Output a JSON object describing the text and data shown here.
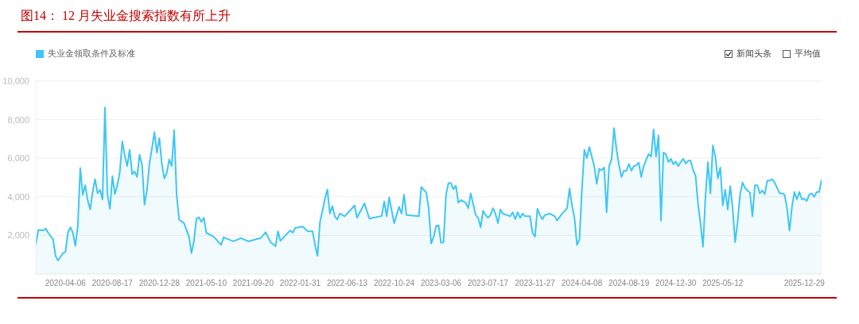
{
  "chart_data": {
    "type": "area",
    "title": "图14：  12 月失业金搜索指数有所上升",
    "legend": "top left",
    "grid": "y",
    "marker": "none",
    "line_style": "solid",
    "annotations": [
      "新闻头条",
      "平均值"
    ],
    "xlim": [
      "2020-01-13",
      "2026-02-16"
    ],
    "xticks": [
      "2020-04-06",
      "2020-08-17",
      "2020-12-28",
      "2021-05-10",
      "2021-09-20",
      "2022-01-31",
      "2022-06-13",
      "2022-10-24",
      "2023-03-06",
      "2023-07-17",
      "2023-11-27",
      "2024-04-08",
      "2024-08-19",
      "2024-12-30",
      "2025-05-12",
      "2025-12-29"
    ],
    "ylim": [
      0,
      10000
    ],
    "yticks": [
      {
        "value": 2000,
        "label": "2,000"
      },
      {
        "value": 4000,
        "label": "4,000"
      },
      {
        "value": 6000,
        "label": "6,000"
      },
      {
        "value": 8000,
        "label": "8,000"
      },
      {
        "value": 10000,
        "label": "10,000"
      }
    ],
    "x": [
      "2020-01-13",
      "2020-01-20",
      "2020-02-03",
      "2020-02-10",
      "2020-02-17",
      "2020-03-02",
      "2020-03-09",
      "2020-03-16",
      "2020-03-30",
      "2020-04-06",
      "2020-04-13",
      "2020-04-20",
      "2020-04-27",
      "2020-05-04",
      "2020-05-11",
      "2020-05-18",
      "2020-05-25",
      "2020-06-01",
      "2020-06-08",
      "2020-06-15",
      "2020-06-22",
      "2020-06-29",
      "2020-07-06",
      "2020-07-13",
      "2020-07-20",
      "2020-07-27",
      "2020-08-03",
      "2020-08-10",
      "2020-08-17",
      "2020-08-24",
      "2020-08-31",
      "2020-09-07",
      "2020-09-14",
      "2020-09-21",
      "2020-09-28",
      "2020-10-05",
      "2020-10-12",
      "2020-10-19",
      "2020-10-26",
      "2020-11-02",
      "2020-11-09",
      "2020-11-16",
      "2020-11-23",
      "2020-11-30",
      "2020-12-07",
      "2020-12-14",
      "2020-12-21",
      "2020-12-28",
      "2021-01-04",
      "2021-01-11",
      "2021-01-18",
      "2021-01-25",
      "2021-02-01",
      "2021-02-08",
      "2021-02-15",
      "2021-02-22",
      "2021-03-08",
      "2021-03-22",
      "2021-03-29",
      "2021-04-05",
      "2021-04-12",
      "2021-04-19",
      "2021-04-26",
      "2021-05-03",
      "2021-05-10",
      "2021-05-31",
      "2021-06-21",
      "2021-06-28",
      "2021-07-26",
      "2021-08-16",
      "2021-09-06",
      "2021-10-11",
      "2021-10-25",
      "2021-11-08",
      "2021-11-22",
      "2021-11-29",
      "2021-12-06",
      "2021-12-20",
      "2022-01-03",
      "2022-01-10",
      "2022-01-17",
      "2022-02-07",
      "2022-02-21",
      "2022-03-07",
      "2022-03-14",
      "2022-03-21",
      "2022-03-28",
      "2022-04-04",
      "2022-04-11",
      "2022-04-18",
      "2022-04-25",
      "2022-05-02",
      "2022-05-09",
      "2022-05-16",
      "2022-05-23",
      "2022-06-06",
      "2022-06-20",
      "2022-07-04",
      "2022-07-11",
      "2022-08-01",
      "2022-08-15",
      "2022-09-19",
      "2022-09-26",
      "2022-10-03",
      "2022-10-10",
      "2022-10-24",
      "2022-11-07",
      "2022-11-14",
      "2022-11-21",
      "2022-11-28",
      "2023-01-02",
      "2023-01-09",
      "2023-01-23",
      "2023-01-30",
      "2023-02-06",
      "2023-02-13",
      "2023-02-20",
      "2023-02-27",
      "2023-03-06",
      "2023-03-13",
      "2023-03-20",
      "2023-03-27",
      "2023-04-03",
      "2023-04-10",
      "2023-04-17",
      "2023-04-24",
      "2023-05-01",
      "2023-05-15",
      "2023-05-22",
      "2023-05-29",
      "2023-06-05",
      "2023-06-12",
      "2023-06-19",
      "2023-06-26",
      "2023-07-03",
      "2023-07-10",
      "2023-07-17",
      "2023-07-24",
      "2023-07-31",
      "2023-08-07",
      "2023-08-14",
      "2023-08-21",
      "2023-08-28",
      "2023-09-18",
      "2023-09-25",
      "2023-10-02",
      "2023-10-09",
      "2023-10-16",
      "2023-10-23",
      "2023-10-30",
      "2023-11-13",
      "2023-11-20",
      "2023-11-27",
      "2023-12-04",
      "2023-12-11",
      "2023-12-18",
      "2023-12-25",
      "2024-01-08",
      "2024-01-22",
      "2024-01-29",
      "2024-02-12",
      "2024-02-26",
      "2024-03-04",
      "2024-03-11",
      "2024-03-18",
      "2024-03-25",
      "2024-04-01",
      "2024-04-08",
      "2024-04-15",
      "2024-04-22",
      "2024-04-29",
      "2024-05-06",
      "2024-05-13",
      "2024-05-20",
      "2024-05-27",
      "2024-06-03",
      "2024-06-10",
      "2024-06-17",
      "2024-06-24",
      "2024-07-01",
      "2024-07-08",
      "2024-07-15",
      "2024-07-22",
      "2024-07-29",
      "2024-08-05",
      "2024-08-12",
      "2024-08-19",
      "2024-08-26",
      "2024-09-02",
      "2024-09-09",
      "2024-09-16",
      "2024-09-23",
      "2024-09-30",
      "2024-10-07",
      "2024-10-14",
      "2024-10-21",
      "2024-10-28",
      "2024-11-04",
      "2024-11-11",
      "2024-11-18",
      "2024-11-25",
      "2024-12-02",
      "2024-12-09",
      "2024-12-16",
      "2024-12-23",
      "2024-12-30",
      "2025-01-06",
      "2025-01-13",
      "2025-01-20",
      "2025-01-27",
      "2025-02-03",
      "2025-02-10",
      "2025-02-17",
      "2025-02-24",
      "2025-03-03",
      "2025-03-10",
      "2025-03-17",
      "2025-03-24",
      "2025-03-31",
      "2025-04-07",
      "2025-04-14",
      "2025-04-21",
      "2025-04-28",
      "2025-05-05",
      "2025-05-12",
      "2025-05-19",
      "2025-05-26",
      "2025-06-02",
      "2025-06-09",
      "2025-06-16",
      "2025-06-23",
      "2025-06-30",
      "2025-07-07",
      "2025-07-14",
      "2025-07-21",
      "2025-07-28",
      "2025-08-04",
      "2025-08-11",
      "2025-08-18",
      "2025-08-25",
      "2025-09-01",
      "2025-09-08",
      "2025-09-15",
      "2025-09-22",
      "2025-09-29",
      "2025-10-06",
      "2025-10-13",
      "2025-10-20",
      "2025-10-27",
      "2025-11-03",
      "2025-11-10",
      "2025-11-17",
      "2025-11-24",
      "2025-12-01",
      "2025-12-08",
      "2025-12-15",
      "2025-12-22",
      "2025-12-29",
      "2026-01-05",
      "2026-01-12",
      "2026-01-19",
      "2026-01-26",
      "2026-02-02",
      "2026-02-09",
      "2026-02-16"
    ],
    "series": [
      {
        "name": "失业金领取条件及标准",
        "color": "#3ec6f6",
        "values": [
          1510,
          2280,
          2250,
          2350,
          2140,
          1790,
          940,
          700,
          1080,
          1150,
          2140,
          2420,
          2140,
          1460,
          2480,
          5490,
          4110,
          4600,
          3830,
          3340,
          4250,
          4910,
          4180,
          4360,
          3860,
          8620,
          4110,
          3380,
          5070,
          4140,
          4600,
          5280,
          6870,
          6150,
          5590,
          6430,
          5170,
          5310,
          5030,
          6180,
          5660,
          3590,
          4360,
          5730,
          6500,
          7350,
          6290,
          7040,
          5730,
          4960,
          5240,
          5940,
          5590,
          7450,
          4110,
          2820,
          2630,
          1930,
          1080,
          1720,
          2870,
          2940,
          2700,
          2910,
          2140,
          1930,
          1510,
          1900,
          1690,
          1860,
          1690,
          1860,
          2170,
          1650,
          1440,
          2210,
          1720,
          2000,
          2250,
          2140,
          2390,
          2460,
          2210,
          2210,
          1510,
          940,
          2700,
          3270,
          3900,
          4380,
          3130,
          3520,
          2990,
          2820,
          3130,
          2990,
          3270,
          3550,
          2910,
          3660,
          2870,
          3010,
          3760,
          2990,
          3970,
          2630,
          3480,
          3130,
          4110,
          3060,
          2990,
          4510,
          4220,
          3410,
          1580,
          1930,
          2490,
          2520,
          1610,
          1650,
          4110,
          4710,
          4710,
          4390,
          4580,
          3690,
          3830,
          3690,
          3410,
          4180,
          3620,
          3060,
          2910,
          2420,
          3270,
          3060,
          2910,
          3060,
          3410,
          3130,
          2630,
          3340,
          3130,
          2990,
          3200,
          2840,
          3200,
          2910,
          3130,
          2990,
          2990,
          2140,
          1930,
          3380,
          3060,
          2840,
          3060,
          3130,
          2990,
          2770,
          3130,
          3410,
          4430,
          3550,
          2910,
          1510,
          1790,
          4390,
          6430,
          6010,
          6580,
          6080,
          5590,
          4670,
          5450,
          5380,
          5520,
          3200,
          5590,
          5940,
          7560,
          6430,
          5660,
          5030,
          5350,
          5350,
          5700,
          5350,
          5590,
          5630,
          5770,
          5030,
          5590,
          5910,
          6220,
          6080,
          7490,
          6080,
          7180,
          2770,
          6290,
          6200,
          5800,
          5970,
          5690,
          5830,
          5590,
          5800,
          5970,
          5730,
          5870,
          5870,
          5380,
          5100,
          3620,
          2630,
          1410,
          4040,
          5800,
          4180,
          6670,
          6080,
          4960,
          5520,
          3550,
          4360,
          3340,
          4560,
          3410,
          1650,
          2700,
          4110,
          4740,
          4460,
          4320,
          4220,
          2990,
          4600,
          4600,
          4180,
          4320,
          4140,
          4840,
          4840,
          4910,
          4740,
          4460,
          4180,
          4180,
          4110,
          3410,
          2250,
          3480,
          4250,
          3870,
          4250,
          3870,
          3900,
          3790,
          4110,
          4180,
          4000,
          4250,
          4250,
          4890
        ]
      }
    ]
  }
}
